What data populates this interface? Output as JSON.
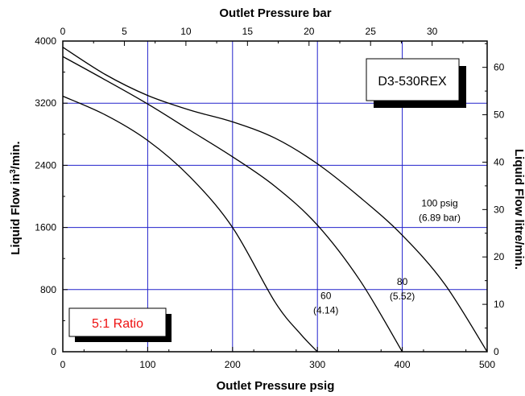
{
  "chart_data": {
    "type": "line",
    "model": "D3-530REX",
    "ratio_label": "5:1 Ratio",
    "xlabel": "Outlet Pressure psig",
    "x2label": "Outlet Pressure bar",
    "ylabel": "Liquid Flow in³/min.",
    "y2label": "Liquid Flow litre/min.",
    "xlim": [
      0,
      500
    ],
    "ylim": [
      0,
      4000
    ],
    "x2lim": [
      0,
      34.47
    ],
    "y2lim": [
      0,
      65.55
    ],
    "xticks": [
      0,
      100,
      200,
      300,
      400,
      500
    ],
    "yticks": [
      0,
      800,
      1600,
      2400,
      3200,
      4000
    ],
    "x2ticks": [
      0,
      5,
      10,
      15,
      20,
      25,
      30
    ],
    "y2ticks": [
      0,
      10,
      20,
      30,
      40,
      50,
      60
    ],
    "grid_x": [
      100,
      200,
      300,
      400
    ],
    "grid_y": [
      800,
      1600,
      2400,
      3200
    ],
    "grid": true,
    "series": [
      {
        "name": "60 (4.14)",
        "label_lines": [
          "60",
          "(4.14)"
        ],
        "x": [
          0,
          50,
          100,
          150,
          200,
          250,
          280,
          300
        ],
        "y": [
          3290,
          3050,
          2720,
          2250,
          1600,
          640,
          230,
          0
        ]
      },
      {
        "name": "80 (5.52)",
        "label_lines": [
          "80",
          "(5.52)"
        ],
        "x": [
          0,
          50,
          100,
          150,
          200,
          250,
          300,
          350,
          400
        ],
        "y": [
          3800,
          3500,
          3190,
          2850,
          2510,
          2130,
          1630,
          920,
          0
        ]
      },
      {
        "name": "100 psig (6.89 bar)",
        "label_lines": [
          "100 psig",
          "(6.89 bar)"
        ],
        "x": [
          0,
          50,
          100,
          150,
          200,
          250,
          300,
          350,
          400,
          450,
          500
        ],
        "y": [
          3920,
          3570,
          3300,
          3110,
          2960,
          2750,
          2420,
          1990,
          1500,
          870,
          0
        ]
      }
    ]
  },
  "colors": {
    "grid": "#2222cc",
    "curve": "#000000",
    "ratio_text": "#ee1111",
    "model_text": "#000000"
  }
}
